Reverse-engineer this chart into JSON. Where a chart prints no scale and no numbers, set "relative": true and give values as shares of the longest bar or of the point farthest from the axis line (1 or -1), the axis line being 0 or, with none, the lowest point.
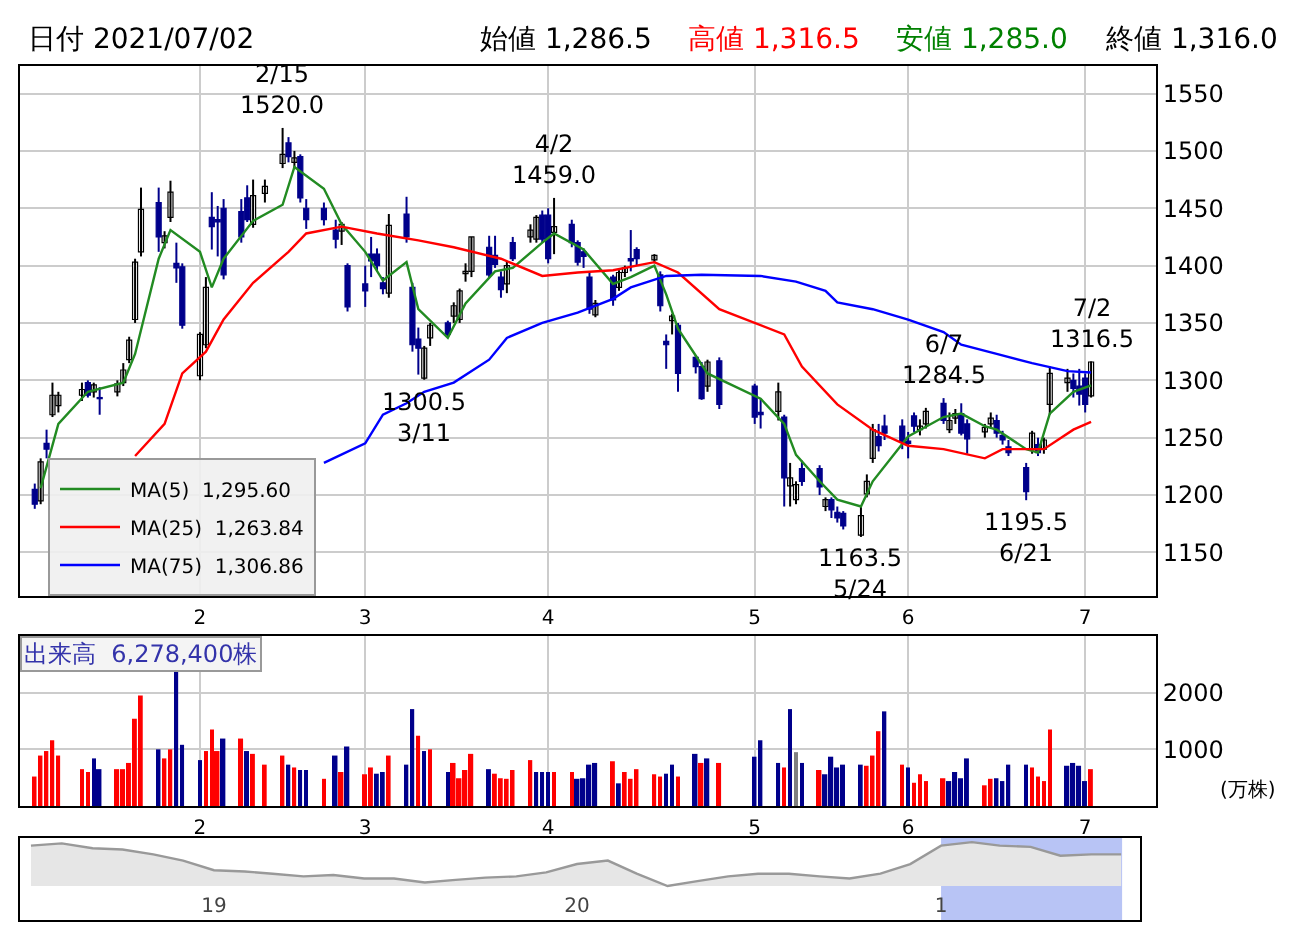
{
  "chart_data": [
    {
      "type": "candlestick",
      "title": "日付 2021/07/02",
      "annotations": [
        "始値 1,286.5",
        "高値 1,316.5",
        "安値 1,285.0",
        "終値 1,316.0",
        {
          "text": "2/15\n1520.0",
          "x": "2021-02-15",
          "y": 1520.0
        },
        {
          "text": "1300.5\n3/11",
          "x": "2021-03-11",
          "y": 1300.5
        },
        {
          "text": "4/2\n1459.0",
          "x": "2021-04-02",
          "y": 1459.0
        },
        {
          "text": "1163.5\n5/24",
          "x": "2021-05-24",
          "y": 1163.5
        },
        {
          "text": "6/7\n1284.5",
          "x": "2021-06-07",
          "y": 1284.5
        },
        {
          "text": "1195.5\n6/21",
          "x": "2021-06-21",
          "y": 1195.5
        },
        {
          "text": "7/2\n1316.5",
          "x": "2021-07-02",
          "y": 1316.5
        }
      ],
      "x": [
        "2021-01-04",
        "2021-01-05",
        "2021-01-06",
        "2021-01-07",
        "2021-01-08",
        "2021-01-12",
        "2021-01-13",
        "2021-01-14",
        "2021-01-15",
        "2021-01-18",
        "2021-01-19",
        "2021-01-20",
        "2021-01-21",
        "2021-01-22",
        "2021-01-25",
        "2021-01-26",
        "2021-01-27",
        "2021-01-28",
        "2021-01-29",
        "2021-02-01",
        "2021-02-02",
        "2021-02-03",
        "2021-02-04",
        "2021-02-05",
        "2021-02-08",
        "2021-02-09",
        "2021-02-10",
        "2021-02-12",
        "2021-02-15",
        "2021-02-16",
        "2021-02-17",
        "2021-02-18",
        "2021-02-19",
        "2021-02-22",
        "2021-02-24",
        "2021-02-25",
        "2021-02-26",
        "2021-03-01",
        "2021-03-02",
        "2021-03-03",
        "2021-03-04",
        "2021-03-05",
        "2021-03-08",
        "2021-03-09",
        "2021-03-10",
        "2021-03-11",
        "2021-03-12",
        "2021-03-15",
        "2021-03-16",
        "2021-03-17",
        "2021-03-18",
        "2021-03-19",
        "2021-03-22",
        "2021-03-23",
        "2021-03-24",
        "2021-03-25",
        "2021-03-26",
        "2021-03-29",
        "2021-03-30",
        "2021-03-31",
        "2021-04-01",
        "2021-04-02",
        "2021-04-05",
        "2021-04-06",
        "2021-04-07",
        "2021-04-08",
        "2021-04-09",
        "2021-04-12",
        "2021-04-13",
        "2021-04-14",
        "2021-04-15",
        "2021-04-16",
        "2021-04-19",
        "2021-04-20",
        "2021-04-21",
        "2021-04-22",
        "2021-04-23",
        "2021-04-26",
        "2021-04-27",
        "2021-04-28",
        "2021-04-30",
        "2021-05-06",
        "2021-05-07",
        "2021-05-10",
        "2021-05-11",
        "2021-05-12",
        "2021-05-13",
        "2021-05-14",
        "2021-05-17",
        "2021-05-18",
        "2021-05-19",
        "2021-05-20",
        "2021-05-21",
        "2021-05-24",
        "2021-05-25",
        "2021-05-26",
        "2021-05-27",
        "2021-05-28",
        "2021-05-31",
        "2021-06-01",
        "2021-06-02",
        "2021-06-03",
        "2021-06-04",
        "2021-06-07",
        "2021-06-08",
        "2021-06-09",
        "2021-06-10",
        "2021-06-11",
        "2021-06-14",
        "2021-06-15",
        "2021-06-16",
        "2021-06-17",
        "2021-06-18",
        "2021-06-21",
        "2021-06-22",
        "2021-06-23",
        "2021-06-24",
        "2021-06-25",
        "2021-06-28",
        "2021-06-29",
        "2021-06-30",
        "2021-07-01",
        "2021-07-02"
      ],
      "ohlc": [
        [
          1205,
          1210,
          1188,
          1192
        ],
        [
          1195,
          1232,
          1192,
          1229
        ],
        [
          1245,
          1257,
          1232,
          1240
        ],
        [
          1270,
          1298,
          1268,
          1287
        ],
        [
          1278,
          1290,
          1272,
          1287
        ],
        [
          1287,
          1298,
          1282,
          1292
        ],
        [
          1298,
          1300,
          1285,
          1287
        ],
        [
          1290,
          1298,
          1285,
          1296
        ],
        [
          1285,
          1294,
          1270,
          1284
        ],
        [
          1290,
          1300,
          1286,
          1297
        ],
        [
          1298,
          1315,
          1295,
          1309
        ],
        [
          1318,
          1338,
          1315,
          1335
        ],
        [
          1353,
          1406,
          1350,
          1403
        ],
        [
          1412,
          1468,
          1408,
          1449
        ],
        [
          1455,
          1468,
          1412,
          1425
        ],
        [
          1420,
          1430,
          1415,
          1426
        ],
        [
          1442,
          1474,
          1438,
          1464
        ],
        [
          1402,
          1420,
          1385,
          1398
        ],
        [
          1399,
          1402,
          1345,
          1348
        ],
        [
          1304,
          1342,
          1300,
          1340
        ],
        [
          1331,
          1390,
          1328,
          1381
        ],
        [
          1442,
          1464,
          1414,
          1434
        ],
        [
          1440,
          1452,
          1408,
          1438
        ],
        [
          1450,
          1458,
          1388,
          1392
        ],
        [
          1447,
          1458,
          1420,
          1425
        ],
        [
          1459,
          1470,
          1438,
          1440
        ],
        [
          1436,
          1475,
          1433,
          1461
        ],
        [
          1463,
          1475,
          1455,
          1469
        ],
        [
          1489,
          1520,
          1485,
          1497
        ],
        [
          1507,
          1512,
          1490,
          1495
        ],
        [
          1490,
          1500,
          1485,
          1494
        ],
        [
          1495,
          1497,
          1455,
          1459
        ],
        [
          1450,
          1458,
          1432,
          1440
        ],
        [
          1450,
          1455,
          1435,
          1440
        ],
        [
          1431,
          1440,
          1415,
          1423
        ],
        [
          1430,
          1438,
          1418,
          1436
        ],
        [
          1400,
          1402,
          1360,
          1364
        ],
        [
          1384,
          1400,
          1364,
          1378
        ],
        [
          1410,
          1425,
          1390,
          1404
        ],
        [
          1410,
          1415,
          1395,
          1400
        ],
        [
          1385,
          1390,
          1375,
          1380
        ],
        [
          1376,
          1445,
          1372,
          1435
        ],
        [
          1445,
          1460,
          1420,
          1425
        ],
        [
          1381,
          1385,
          1325,
          1331
        ],
        [
          1336,
          1346,
          1305,
          1328
        ],
        [
          1302,
          1330,
          1300.5,
          1328
        ],
        [
          1337,
          1350,
          1330,
          1348
        ],
        [
          1350,
          1352,
          1338,
          1340
        ],
        [
          1356,
          1368,
          1350,
          1365
        ],
        [
          1353,
          1380,
          1350,
          1378
        ],
        [
          1393,
          1402,
          1386,
          1395
        ],
        [
          1395,
          1425,
          1390,
          1425
        ],
        [
          1416,
          1426,
          1390,
          1392
        ],
        [
          1409,
          1426,
          1398,
          1401
        ],
        [
          1390,
          1395,
          1372,
          1379
        ],
        [
          1384,
          1404,
          1376,
          1400
        ],
        [
          1420,
          1425,
          1404,
          1406
        ],
        [
          1425,
          1436,
          1420,
          1431
        ],
        [
          1423,
          1444,
          1420,
          1442
        ],
        [
          1444,
          1448,
          1420,
          1423
        ],
        [
          1444,
          1450,
          1402,
          1406
        ],
        [
          1429,
          1459,
          1410,
          1434
        ],
        [
          1436,
          1440,
          1416,
          1420
        ],
        [
          1420,
          1422,
          1400,
          1403
        ],
        [
          1412,
          1415,
          1398,
          1408
        ],
        [
          1390,
          1395,
          1358,
          1362
        ],
        [
          1357,
          1370,
          1355,
          1367
        ],
        [
          1390,
          1392,
          1365,
          1370
        ],
        [
          1381,
          1396,
          1378,
          1394
        ],
        [
          1394,
          1400,
          1390,
          1398
        ],
        [
          1406,
          1431,
          1395,
          1404
        ],
        [
          1414,
          1416,
          1400,
          1406
        ],
        [
          1405,
          1410,
          1402,
          1409
        ],
        [
          1392,
          1395,
          1360,
          1365
        ],
        [
          1334,
          1340,
          1310,
          1331
        ],
        [
          1352,
          1358,
          1340,
          1356
        ],
        [
          1348,
          1350,
          1290,
          1306
        ],
        [
          1320,
          1322,
          1306,
          1312
        ],
        [
          1312,
          1316,
          1283,
          1284
        ],
        [
          1295,
          1318,
          1290,
          1316
        ],
        [
          1317,
          1320,
          1275,
          1279
        ],
        [
          1295,
          1297,
          1262,
          1268
        ],
        [
          1272,
          1284,
          1258,
          1270
        ],
        [
          1273,
          1298,
          1265,
          1290
        ],
        [
          1268,
          1270,
          1190,
          1215
        ],
        [
          1208,
          1228,
          1190,
          1215
        ],
        [
          1196,
          1212,
          1192,
          1209
        ],
        [
          1223,
          1230,
          1208,
          1212
        ],
        [
          1223,
          1226,
          1200,
          1207
        ],
        [
          1190,
          1198,
          1186,
          1196
        ],
        [
          1196,
          1198,
          1180,
          1187
        ],
        [
          1185,
          1190,
          1176,
          1180
        ],
        [
          1184,
          1186,
          1170,
          1173
        ],
        [
          1165,
          1190,
          1163.5,
          1182
        ],
        [
          1201,
          1218,
          1198,
          1212
        ],
        [
          1232,
          1262,
          1228,
          1257
        ],
        [
          1251,
          1262,
          1238,
          1243
        ],
        [
          1260,
          1270,
          1248,
          1254
        ],
        [
          1260,
          1266,
          1240,
          1246
        ],
        [
          1247,
          1255,
          1232,
          1245
        ],
        [
          1269,
          1272,
          1255,
          1260
        ],
        [
          1257,
          1266,
          1252,
          1260
        ],
        [
          1262,
          1276,
          1258,
          1273
        ],
        [
          1280,
          1284.5,
          1262,
          1265
        ],
        [
          1257,
          1272,
          1254,
          1265
        ],
        [
          1267,
          1275,
          1262,
          1271
        ],
        [
          1271,
          1280,
          1252,
          1254
        ],
        [
          1262,
          1266,
          1236,
          1249
        ],
        [
          1255,
          1262,
          1250,
          1259
        ],
        [
          1262,
          1272,
          1258,
          1267
        ],
        [
          1265,
          1270,
          1250,
          1254
        ],
        [
          1252,
          1256,
          1244,
          1248
        ],
        [
          1242,
          1248,
          1234,
          1237
        ],
        [
          1224,
          1228,
          1195.5,
          1203
        ],
        [
          1240,
          1256,
          1236,
          1254
        ],
        [
          1244,
          1250,
          1234,
          1237
        ],
        [
          1240,
          1250,
          1236,
          1248
        ],
        [
          1279,
          1312,
          1270,
          1306
        ],
        [
          1298,
          1310,
          1290,
          1302
        ],
        [
          1300,
          1306,
          1285,
          1293
        ],
        [
          1295,
          1310,
          1278,
          1288
        ],
        [
          1302,
          1306,
          1272,
          1279
        ],
        [
          1286.5,
          1316.5,
          1285.0,
          1316.0
        ]
      ],
      "series": [
        {
          "name": "MA(5)  1,295.60",
          "type": "line",
          "color": "#228b22",
          "x": [
            "2021-01-05",
            "2021-01-08",
            "2021-01-13",
            "2021-01-19",
            "2021-01-21",
            "2021-01-25",
            "2021-01-27",
            "2021-02-01",
            "2021-02-03",
            "2021-02-05",
            "2021-02-10",
            "2021-02-15",
            "2021-02-17",
            "2021-02-22",
            "2021-02-25",
            "2021-03-01",
            "2021-03-04",
            "2021-03-08",
            "2021-03-10",
            "2021-03-15",
            "2021-03-18",
            "2021-03-23",
            "2021-03-26",
            "2021-03-31",
            "2021-04-02",
            "2021-04-07",
            "2021-04-12",
            "2021-04-15",
            "2021-04-19",
            "2021-04-21",
            "2021-04-23",
            "2021-04-28",
            "2021-05-07",
            "2021-05-11",
            "2021-05-13",
            "2021-05-17",
            "2021-05-20",
            "2021-05-24",
            "2021-05-26",
            "2021-06-01",
            "2021-06-07",
            "2021-06-10",
            "2021-06-14",
            "2021-06-16",
            "2021-06-21",
            "2021-06-23",
            "2021-06-25",
            "2021-06-29",
            "2021-07-02"
          ],
          "values": [
            1206,
            1262,
            1290,
            1298,
            1323,
            1406,
            1431,
            1412,
            1381,
            1406,
            1439,
            1453,
            1486,
            1467,
            1436,
            1412,
            1387,
            1403,
            1362,
            1337,
            1367,
            1395,
            1398,
            1420,
            1428,
            1414,
            1384,
            1390,
            1400,
            1375,
            1345,
            1306,
            1284,
            1262,
            1235,
            1212,
            1196,
            1190,
            1212,
            1251,
            1268,
            1271,
            1260,
            1257,
            1240,
            1237,
            1271,
            1290,
            1295.6
          ]
        },
        {
          "name": "MA(25)  1,263.84",
          "type": "line",
          "color": "#ff0000",
          "x": [
            "2021-01-21",
            "2021-01-26",
            "2021-01-29",
            "2021-02-02",
            "2021-02-05",
            "2021-02-10",
            "2021-02-16",
            "2021-02-19",
            "2021-02-25",
            "2021-03-03",
            "2021-03-10",
            "2021-03-16",
            "2021-03-24",
            "2021-03-31",
            "2021-04-06",
            "2021-04-12",
            "2021-04-19",
            "2021-04-23",
            "2021-04-30",
            "2021-05-11",
            "2021-05-14",
            "2021-05-20",
            "2021-05-26",
            "2021-06-01",
            "2021-06-07",
            "2021-06-14",
            "2021-06-17",
            "2021-06-24",
            "2021-06-29",
            "2021-07-02"
          ],
          "values": [
            1234,
            1262,
            1306,
            1325,
            1353,
            1385,
            1412,
            1428,
            1434,
            1428,
            1422,
            1416,
            1406,
            1391,
            1394,
            1396,
            1403,
            1394,
            1362,
            1340,
            1312,
            1279,
            1257,
            1243,
            1240,
            1232,
            1240,
            1240,
            1257,
            1263.84
          ]
        },
        {
          "name": "MA(75)  1,306.86",
          "type": "line",
          "color": "#0000ff",
          "x": [
            "2021-02-22",
            "2021-03-01",
            "2021-03-04",
            "2021-03-08",
            "2021-03-11",
            "2021-03-16",
            "2021-03-22",
            "2021-03-25",
            "2021-03-31",
            "2021-04-06",
            "2021-04-12",
            "2021-04-15",
            "2021-04-21",
            "2021-04-27",
            "2021-05-07",
            "2021-05-13",
            "2021-05-18",
            "2021-05-20",
            "2021-05-26",
            "2021-06-01",
            "2021-06-07",
            "2021-06-10",
            "2021-06-16",
            "2021-06-22",
            "2021-06-28",
            "2021-07-02"
          ],
          "values": [
            1228,
            1245,
            1270,
            1280,
            1290,
            1298,
            1318,
            1337,
            1350,
            1359,
            1371,
            1381,
            1391,
            1392,
            1391,
            1386,
            1378,
            1368,
            1362,
            1353,
            1342,
            1331,
            1323,
            1315,
            1308,
            1306.86
          ]
        }
      ],
      "xlim": [
        "2021-01-01T12:00",
        "2021-07-13"
      ],
      "xticks": [
        {
          "value": "2021-02-01",
          "label": "2"
        },
        {
          "value": "2021-03-01",
          "label": "3"
        },
        {
          "value": "2021-04-01",
          "label": "4"
        },
        {
          "value": "2021-05-06",
          "label": "5"
        },
        {
          "value": "2021-06-01",
          "label": "6"
        },
        {
          "value": "2021-07-01",
          "label": "7"
        }
      ],
      "ylim": [
        1112,
        1574
      ],
      "yticks": [
        1150,
        1200,
        1250,
        1300,
        1350,
        1400,
        1450,
        1500,
        1550
      ],
      "grid": true,
      "legend": "bottom left"
    },
    {
      "type": "bar",
      "title": "出来高  6,278,400株",
      "ylabel": "(万株)",
      "x": [
        "2021-01-04",
        "2021-01-05",
        "2021-01-06",
        "2021-01-07",
        "2021-01-08",
        "2021-01-12",
        "2021-01-13",
        "2021-01-14",
        "2021-01-15",
        "2021-01-18",
        "2021-01-19",
        "2021-01-20",
        "2021-01-21",
        "2021-01-22",
        "2021-01-25",
        "2021-01-26",
        "2021-01-27",
        "2021-01-28",
        "2021-01-29",
        "2021-02-01",
        "2021-02-02",
        "2021-02-03",
        "2021-02-04",
        "2021-02-05",
        "2021-02-08",
        "2021-02-09",
        "2021-02-10",
        "2021-02-12",
        "2021-02-15",
        "2021-02-16",
        "2021-02-17",
        "2021-02-18",
        "2021-02-19",
        "2021-02-22",
        "2021-02-24",
        "2021-02-25",
        "2021-02-26",
        "2021-03-01",
        "2021-03-02",
        "2021-03-03",
        "2021-03-04",
        "2021-03-05",
        "2021-03-08",
        "2021-03-09",
        "2021-03-10",
        "2021-03-11",
        "2021-03-12",
        "2021-03-15",
        "2021-03-16",
        "2021-03-17",
        "2021-03-18",
        "2021-03-19",
        "2021-03-22",
        "2021-03-23",
        "2021-03-24",
        "2021-03-25",
        "2021-03-26",
        "2021-03-29",
        "2021-03-30",
        "2021-03-31",
        "2021-04-01",
        "2021-04-02",
        "2021-04-05",
        "2021-04-06",
        "2021-04-07",
        "2021-04-08",
        "2021-04-09",
        "2021-04-12",
        "2021-04-13",
        "2021-04-14",
        "2021-04-15",
        "2021-04-16",
        "2021-04-19",
        "2021-04-20",
        "2021-04-21",
        "2021-04-22",
        "2021-04-23",
        "2021-04-26",
        "2021-04-27",
        "2021-04-28",
        "2021-04-30",
        "2021-05-06",
        "2021-05-07",
        "2021-05-10",
        "2021-05-11",
        "2021-05-12",
        "2021-05-13",
        "2021-05-14",
        "2021-05-17",
        "2021-05-18",
        "2021-05-19",
        "2021-05-20",
        "2021-05-21",
        "2021-05-24",
        "2021-05-25",
        "2021-05-26",
        "2021-05-27",
        "2021-05-28",
        "2021-05-31",
        "2021-06-01",
        "2021-06-02",
        "2021-06-03",
        "2021-06-04",
        "2021-06-07",
        "2021-06-08",
        "2021-06-09",
        "2021-06-10",
        "2021-06-11",
        "2021-06-14",
        "2021-06-15",
        "2021-06-16",
        "2021-06-17",
        "2021-06-18",
        "2021-06-21",
        "2021-06-22",
        "2021-06-23",
        "2021-06-24",
        "2021-06-25",
        "2021-06-28",
        "2021-06-29",
        "2021-06-30",
        "2021-07-01",
        "2021-07-02"
      ],
      "values": [
        520,
        890,
        970,
        1160,
        890,
        650,
        600,
        840,
        650,
        650,
        650,
        760,
        1540,
        1950,
        1000,
        840,
        1000,
        2410,
        1080,
        810,
        970,
        1350,
        970,
        1190,
        1190,
        970,
        920,
        730,
        890,
        730,
        680,
        635,
        635,
        480,
        890,
        600,
        1050,
        560,
        680,
        570,
        600,
        890,
        730,
        1710,
        1240,
        970,
        1000,
        600,
        760,
        490,
        635,
        920,
        650,
        570,
        490,
        480,
        635,
        810,
        600,
        600,
        600,
        600,
        600,
        480,
        490,
        730,
        760,
        790,
        400,
        600,
        480,
        650,
        560,
        520,
        570,
        730,
        520,
        920,
        760,
        840,
        760,
        870,
        1160,
        760,
        680,
        1710,
        950,
        760,
        635,
        560,
        870,
        680,
        730,
        730,
        710,
        890,
        1320,
        1670,
        730,
        680,
        410,
        560,
        440,
        490,
        440,
        600,
        490,
        840,
        365,
        480,
        490,
        440,
        730,
        730,
        680,
        520,
        440,
        1350,
        710,
        760,
        710,
        440,
        650
      ],
      "colors": [
        "#ff0000",
        "#ff0000",
        "#ff0000",
        "#ff0000",
        "#ff0000",
        "#ff0000",
        "#ff0000",
        "#00008b",
        "#00008b",
        "#ff0000",
        "#ff0000",
        "#ff0000",
        "#ff0000",
        "#ff0000",
        "#00008b",
        "#ff0000",
        "#ff0000",
        "#00008b",
        "#00008b",
        "#00008b",
        "#ff0000",
        "#ff0000",
        "#ff0000",
        "#00008b",
        "#ff0000",
        "#00008b",
        "#ff0000",
        "#ff0000",
        "#ff0000",
        "#00008b",
        "#ff0000",
        "#00008b",
        "#00008b",
        "#ff0000",
        "#00008b",
        "#ff0000",
        "#00008b",
        "#ff0000",
        "#ff0000",
        "#00008b",
        "#00008b",
        "#ff0000",
        "#00008b",
        "#00008b",
        "#ff0000",
        "#00008b",
        "#ff0000",
        "#00008b",
        "#ff0000",
        "#ff0000",
        "#ff0000",
        "#ff0000",
        "#00008b",
        "#ff0000",
        "#ff0000",
        "#ff0000",
        "#ff0000",
        "#ff0000",
        "#00008b",
        "#00008b",
        "#00008b",
        "#ff0000",
        "#ff0000",
        "#00008b",
        "#00008b",
        "#00008b",
        "#00008b",
        "#ff0000",
        "#00008b",
        "#ff0000",
        "#ff0000",
        "#ff0000",
        "#ff0000",
        "#ff0000",
        "#00008b",
        "#00008b",
        "#ff0000",
        "#00008b",
        "#ff0000",
        "#00008b",
        "#ff0000",
        "#00008b",
        "#00008b",
        "#00008b",
        "#ff0000",
        "#00008b",
        "#808080",
        "#00008b",
        "#ff0000",
        "#00008b",
        "#00008b",
        "#00008b",
        "#00008b",
        "#00008b",
        "#ff0000",
        "#ff0000",
        "#ff0000",
        "#00008b",
        "#ff0000",
        "#00008b",
        "#ff0000",
        "#ff0000",
        "#ff0000",
        "#ff0000",
        "#00008b",
        "#00008b",
        "#00008b",
        "#00008b",
        "#ff0000",
        "#ff0000",
        "#00008b",
        "#00008b",
        "#00008b",
        "#00008b",
        "#ff0000",
        "#ff0000",
        "#ff0000",
        "#ff0000",
        "#00008b",
        "#00008b",
        "#00008b",
        "#00008b",
        "#ff0000"
      ],
      "xlim": [
        "2021-01-01T12:00",
        "2021-07-13"
      ],
      "xticks": [
        {
          "value": "2021-02-01",
          "label": "2"
        },
        {
          "value": "2021-03-01",
          "label": "3"
        },
        {
          "value": "2021-04-01",
          "label": "4"
        },
        {
          "value": "2021-05-06",
          "label": "5"
        },
        {
          "value": "2021-06-01",
          "label": "6"
        },
        {
          "value": "2021-07-01",
          "label": "7"
        }
      ],
      "ylim": [
        0,
        3000
      ],
      "yticks": [
        1000,
        2000
      ],
      "grid": true
    },
    {
      "type": "area",
      "relative": true,
      "color": "#999999",
      "x": [
        "2018-07",
        "2018-08",
        "2018-09",
        "2018-10",
        "2018-11",
        "2018-12",
        "2019-01",
        "2019-02",
        "2019-03",
        "2019-04",
        "2019-05",
        "2019-06",
        "2019-07",
        "2019-08",
        "2019-09",
        "2019-10",
        "2019-11",
        "2019-12",
        "2020-01",
        "2020-02",
        "2020-03",
        "2020-04",
        "2020-05",
        "2020-06",
        "2020-07",
        "2020-08",
        "2020-09",
        "2020-10",
        "2020-11",
        "2020-12",
        "2021-01",
        "2021-02",
        "2021-03",
        "2021-04",
        "2021-05",
        "2021-06",
        "2021-07"
      ],
      "values": [
        0.92,
        0.97,
        0.86,
        0.83,
        0.72,
        0.58,
        0.36,
        0.33,
        0.28,
        0.22,
        0.25,
        0.17,
        0.17,
        0.08,
        0.14,
        0.19,
        0.22,
        0.31,
        0.5,
        0.58,
        0.28,
        0,
        0.11,
        0.22,
        0.28,
        0.28,
        0.22,
        0.17,
        0.28,
        0.5,
        0.92,
        1,
        0.92,
        0.89,
        0.69,
        0.72,
        0.72
      ],
      "xlim": [
        "2018-06-20",
        "2021-07-20"
      ],
      "xticks": [
        {
          "value": "2019-01-01",
          "label": "19"
        },
        {
          "value": "2020-01-01",
          "label": "20"
        },
        {
          "value": "2021-01-01",
          "label": "1"
        }
      ],
      "bands": [
        {
          "axis": "x",
          "from": "2021-01-01",
          "to": "2021-07-02",
          "color": "#b8c4f5"
        }
      ]
    }
  ]
}
